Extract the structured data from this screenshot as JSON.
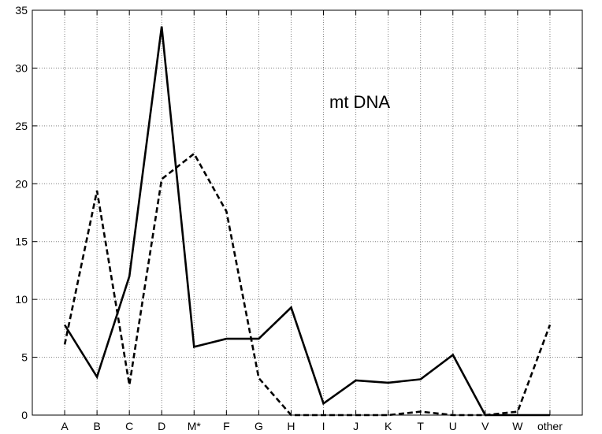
{
  "chart_data": {
    "type": "line",
    "title": "",
    "xlabel": "",
    "ylabel": "",
    "annotation": "mt DNA",
    "categories": [
      "A",
      "B",
      "C",
      "D",
      "M*",
      "F",
      "G",
      "H",
      "I",
      "J",
      "K",
      "T",
      "U",
      "V",
      "W",
      "other"
    ],
    "ylim": [
      0,
      35
    ],
    "yticks": [
      0,
      5,
      10,
      15,
      20,
      25,
      30,
      35
    ],
    "grid": true,
    "legend": "none",
    "series": [
      {
        "style": "solid",
        "color": "#000000",
        "values": [
          7.8,
          3.3,
          12.0,
          33.6,
          5.9,
          6.6,
          6.6,
          9.3,
          1.0,
          3.0,
          2.8,
          3.1,
          5.2,
          0.0,
          0.0,
          0.0
        ]
      },
      {
        "style": "dashed",
        "color": "#000000",
        "values": [
          6.1,
          19.4,
          2.6,
          20.4,
          22.6,
          17.6,
          3.2,
          0.0,
          0.0,
          0.0,
          0.0,
          0.3,
          0.0,
          0.0,
          0.3,
          7.8
        ]
      }
    ]
  }
}
